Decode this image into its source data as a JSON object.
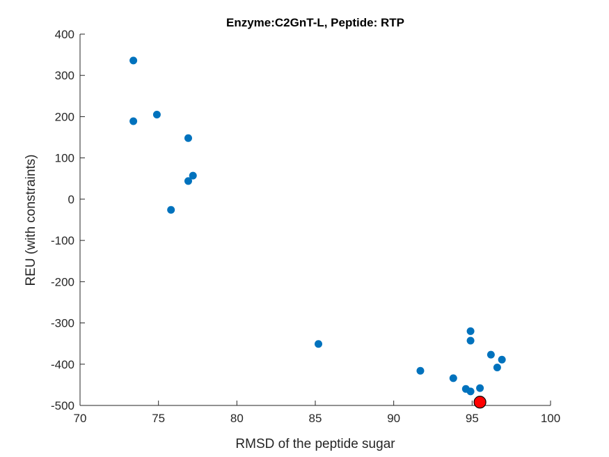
{
  "chart_data": {
    "type": "scatter",
    "title": "Enzyme:C2GnT-L, Peptide: RTP",
    "xlabel": "RMSD of the peptide sugar",
    "ylabel": "REU (with constraints)",
    "xlim": [
      70,
      100
    ],
    "ylim": [
      -500,
      400
    ],
    "xticks": [
      70,
      75,
      80,
      85,
      90,
      95,
      100
    ],
    "yticks": [
      -500,
      -400,
      -300,
      -200,
      -100,
      0,
      100,
      200,
      300,
      400
    ],
    "grid": false,
    "series": [
      {
        "color": "#0072BD",
        "points": [
          [
            73.4,
            336
          ],
          [
            73.4,
            189
          ],
          [
            74.9,
            205
          ],
          [
            76.9,
            148
          ],
          [
            77.2,
            57
          ],
          [
            76.9,
            44
          ],
          [
            75.8,
            -26
          ],
          [
            85.2,
            -351
          ],
          [
            91.7,
            -416
          ],
          [
            93.8,
            -434
          ],
          [
            94.6,
            -460
          ],
          [
            94.9,
            -466
          ],
          [
            95.5,
            -458
          ],
          [
            95.5,
            -487
          ],
          [
            94.9,
            -320
          ],
          [
            94.9,
            -343
          ],
          [
            96.2,
            -377
          ],
          [
            96.9,
            -389
          ],
          [
            96.6,
            -408
          ]
        ]
      },
      {
        "color": "#FF0000",
        "edge_color": "#000000",
        "points": [
          [
            95.5,
            -492
          ]
        ]
      }
    ]
  }
}
